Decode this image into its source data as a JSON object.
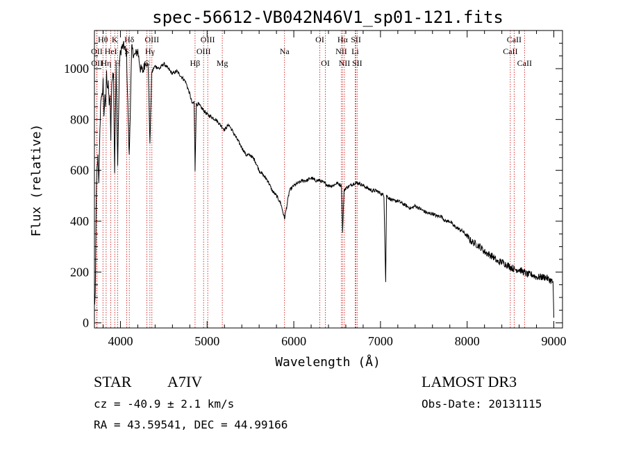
{
  "chart_data": {
    "type": "line",
    "title": "spec-56612-VB042N46V1_sp01-121.fits",
    "xlabel": "Wavelength (Å)",
    "ylabel": "Flux (relative)",
    "xlim": [
      3700,
      9100
    ],
    "ylim": [
      -20,
      1150
    ],
    "xticks": [
      4000,
      5000,
      6000,
      7000,
      8000,
      9000
    ],
    "yticks": [
      0,
      200,
      400,
      600,
      800,
      1000
    ],
    "grid": false,
    "series": [
      {
        "name": "flux",
        "x": [
          3700,
          3710,
          3720,
          3730,
          3740,
          3750,
          3760,
          3770,
          3780,
          3790,
          3800,
          3810,
          3820,
          3830,
          3840,
          3850,
          3860,
          3870,
          3880,
          3889,
          3900,
          3920,
          3933,
          3950,
          3968,
          3990,
          4010,
          4040,
          4070,
          4101,
          4130,
          4160,
          4200,
          4230,
          4260,
          4290,
          4320,
          4340,
          4360,
          4380,
          4400,
          4450,
          4500,
          4550,
          4600,
          4650,
          4700,
          4750,
          4800,
          4830,
          4850,
          4861,
          4875,
          4900,
          4950,
          5000,
          5050,
          5100,
          5150,
          5200,
          5250,
          5300,
          5350,
          5400,
          5450,
          5500,
          5550,
          5600,
          5650,
          5700,
          5750,
          5800,
          5850,
          5893,
          5950,
          6000,
          6050,
          6100,
          6150,
          6200,
          6250,
          6300,
          6350,
          6400,
          6450,
          6500,
          6550,
          6563,
          6580,
          6600,
          6650,
          6700,
          6750,
          6800,
          6850,
          6900,
          6950,
          7000,
          7040,
          7060,
          7070,
          7100,
          7150,
          7200,
          7250,
          7300,
          7350,
          7400,
          7450,
          7500,
          7550,
          7600,
          7650,
          7700,
          7750,
          7800,
          7850,
          7900,
          7950,
          8000,
          8050,
          8100,
          8150,
          8200,
          8250,
          8300,
          8350,
          8400,
          8450,
          8500,
          8550,
          8600,
          8650,
          8700,
          8750,
          8800,
          8850,
          8900,
          8950,
          8990,
          9000
        ],
        "values": [
          70,
          100,
          480,
          600,
          650,
          560,
          700,
          850,
          900,
          880,
          950,
          820,
          880,
          860,
          980,
          910,
          950,
          860,
          900,
          720,
          960,
          990,
          600,
          1000,
          620,
          1040,
          1080,
          1090,
          1060,
          650,
          1080,
          1050,
          1070,
          1000,
          990,
          1030,
          1010,
          700,
          980,
          1000,
          1010,
          1000,
          1020,
          1000,
          980,
          990,
          970,
          950,
          900,
          860,
          870,
          600,
          860,
          860,
          840,
          820,
          810,
          800,
          780,
          760,
          780,
          750,
          720,
          690,
          660,
          660,
          640,
          600,
          580,
          560,
          520,
          500,
          470,
          410,
          520,
          540,
          550,
          560,
          560,
          570,
          560,
          560,
          550,
          540,
          540,
          550,
          540,
          360,
          520,
          530,
          540,
          550,
          550,
          540,
          530,
          520,
          520,
          510,
          500,
          160,
          500,
          490,
          480,
          480,
          470,
          460,
          450,
          460,
          450,
          440,
          430,
          430,
          420,
          420,
          400,
          400,
          380,
          370,
          360,
          340,
          320,
          310,
          300,
          280,
          270,
          260,
          240,
          240,
          230,
          220,
          210,
          210,
          200,
          190,
          190,
          180,
          180,
          180,
          170,
          160,
          20
        ]
      }
    ],
    "lines": [
      {
        "label": "Hθ",
        "x": 3798,
        "row": 0
      },
      {
        "label": "OII",
        "x": 3727,
        "row": 1
      },
      {
        "label": "OII",
        "x": 3729,
        "row": 2
      },
      {
        "label": "Hη",
        "x": 3835,
        "row": 2
      },
      {
        "label": "HeI",
        "x": 3889,
        "row": 1
      },
      {
        "label": "K",
        "x": 3934,
        "row": 0
      },
      {
        "label": "S",
        "x": 4072,
        "row": 1
      },
      {
        "label": "H",
        "x": 3968,
        "row": 2
      },
      {
        "label": "Hδ",
        "x": 4102,
        "row": 0
      },
      {
        "label": "OIII",
        "x": 4363,
        "row": 0
      },
      {
        "label": "Hγ",
        "x": 4340,
        "row": 1
      },
      {
        "label": "G",
        "x": 4305,
        "row": 2
      },
      {
        "label": "OIII",
        "x": 5007,
        "row": 0
      },
      {
        "label": "OIII",
        "x": 4959,
        "row": 1
      },
      {
        "label": "Hβ",
        "x": 4861,
        "row": 2
      },
      {
        "label": "Mg",
        "x": 5175,
        "row": 2
      },
      {
        "label": "Na",
        "x": 5893,
        "row": 1
      },
      {
        "label": "OI",
        "x": 6300,
        "row": 0
      },
      {
        "label": "OI",
        "x": 6364,
        "row": 2
      },
      {
        "label": "Hα",
        "x": 6563,
        "row": 0
      },
      {
        "label": "SII",
        "x": 6717,
        "row": 0
      },
      {
        "label": "NII",
        "x": 6548,
        "row": 1
      },
      {
        "label": "Li",
        "x": 6708,
        "row": 1
      },
      {
        "label": "NII",
        "x": 6584,
        "row": 2
      },
      {
        "label": "SII",
        "x": 6731,
        "row": 2
      },
      {
        "label": "CaII",
        "x": 8542,
        "row": 0
      },
      {
        "label": "CaII",
        "x": 8498,
        "row": 1
      },
      {
        "label": "CaII",
        "x": 8662,
        "row": 2
      }
    ]
  },
  "info": {
    "object_class": "STAR",
    "subclass": "A7IV",
    "survey": "LAMOST DR3",
    "cz": "cz = -40.9 ± 2.1 km/s",
    "obs_date": "Obs-Date: 20131115",
    "coords": "RA =  43.59541, DEC =  44.99166"
  }
}
